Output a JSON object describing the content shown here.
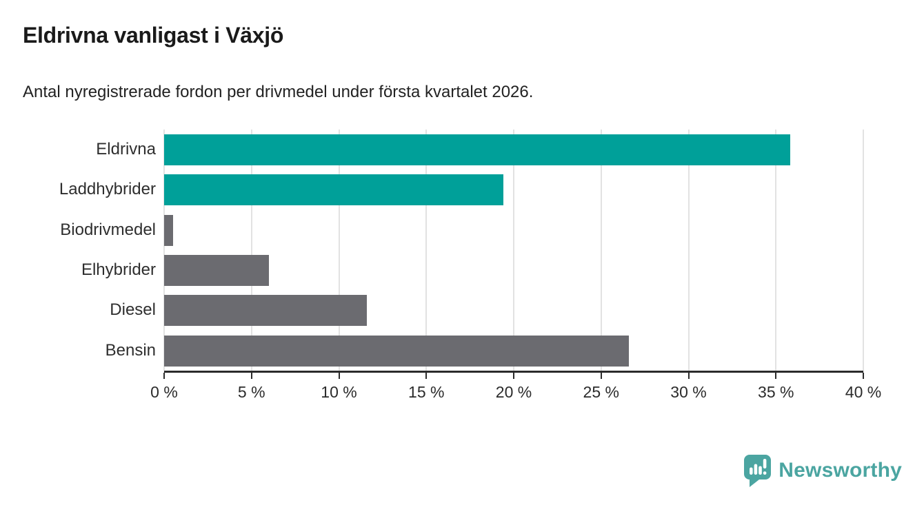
{
  "chart_data": {
    "type": "bar",
    "orientation": "horizontal",
    "title": "Eldrivna vanligast i Växjö",
    "subtitle": "Antal nyregistrerade fordon per drivmedel under första kvartalet 2026.",
    "categories": [
      "Eldrivna",
      "Laddhybrider",
      "Biodrivmedel",
      "Elhybrider",
      "Diesel",
      "Bensin"
    ],
    "values": [
      35.8,
      19.4,
      0.5,
      6.0,
      11.6,
      26.6
    ],
    "unit": "%",
    "bar_colors": [
      "#00A099",
      "#00A099",
      "#6B6B70",
      "#6B6B70",
      "#6B6B70",
      "#6B6B70"
    ],
    "highlight_color": "#00A099",
    "default_color": "#6B6B70",
    "xlim": [
      0,
      40
    ],
    "xticks": [
      0,
      5,
      10,
      15,
      20,
      25,
      30,
      35,
      40
    ],
    "xtick_labels": [
      "0 %",
      "5 %",
      "10 %",
      "15 %",
      "20 %",
      "25 %",
      "30 %",
      "35 %",
      "40 %"
    ],
    "grid": "vertical",
    "gridline_color": "#E2E2E2",
    "axis_color": "#2B2B2B",
    "legend": "none"
  },
  "branding": {
    "logo_text": "Newsworthy",
    "logo_color": "#4BA5A1",
    "logo_icon": "newsworthy-speech-bubble-chart-icon"
  }
}
